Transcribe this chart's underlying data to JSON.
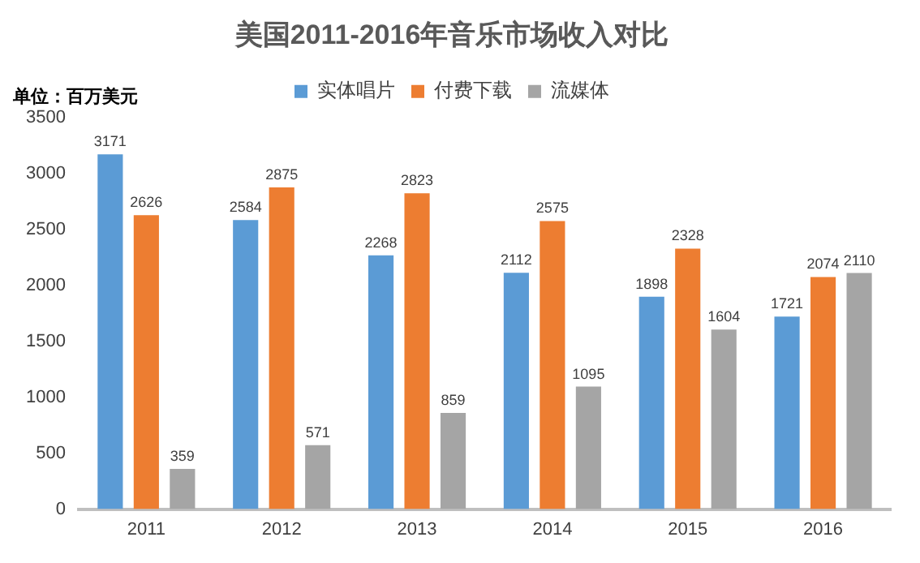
{
  "chart_data": {
    "type": "bar",
    "title": "美国2011-2016年音乐市场收入对比",
    "annotations": [
      "单位：百万美元"
    ],
    "categories": [
      "2011",
      "2012",
      "2013",
      "2014",
      "2015",
      "2016"
    ],
    "series": [
      {
        "name": "实体唱片",
        "color": "#5b9bd5",
        "values": [
          3171,
          2584,
          2268,
          2112,
          1898,
          1721
        ]
      },
      {
        "name": "付费下载",
        "color": "#ed7d31",
        "values": [
          2626,
          2875,
          2823,
          2575,
          2328,
          2074
        ]
      },
      {
        "name": "流媒体",
        "color": "#a5a5a5",
        "values": [
          359,
          571,
          859,
          1095,
          1604,
          2110
        ]
      }
    ],
    "ylim": [
      0,
      3500
    ],
    "yticks": [
      0,
      500,
      1000,
      1500,
      2000,
      2500,
      3000,
      3500
    ],
    "grid": false,
    "legend": "top",
    "data_labels": true
  }
}
